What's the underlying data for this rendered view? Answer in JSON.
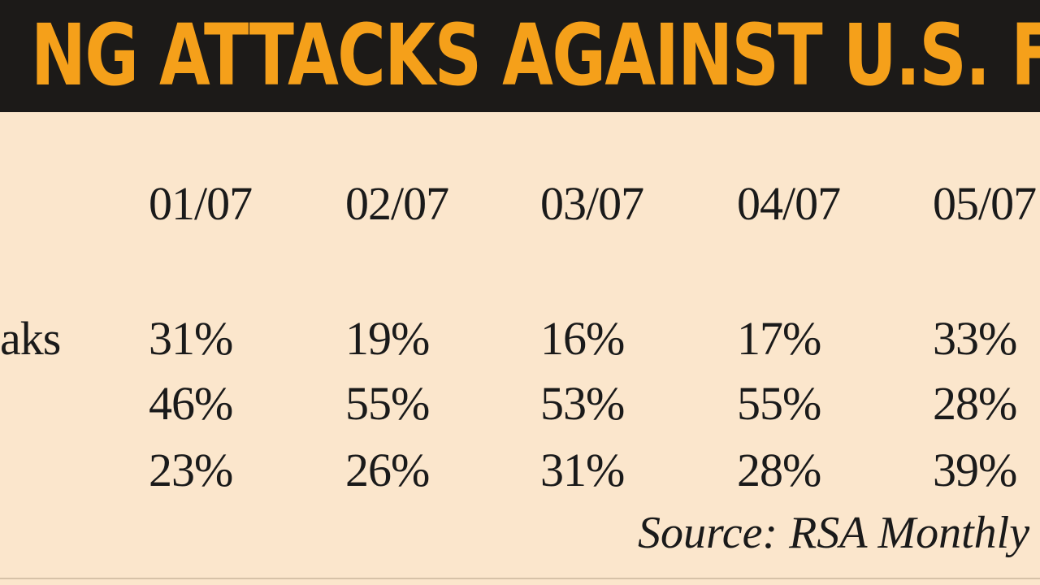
{
  "header": {
    "title": "NG ATTACKS AGAINST U.S. FINA"
  },
  "table": {
    "columns": [
      "01/07",
      "02/07",
      "03/07",
      "04/07",
      "05/07"
    ],
    "rows": [
      {
        "label": "aks",
        "cells": [
          "31%",
          "19%",
          "16%",
          "17%",
          "33%"
        ]
      },
      {
        "cells": [
          "46%",
          "55%",
          "53%",
          "55%",
          "28%"
        ]
      },
      {
        "cells": [
          "23%",
          "26%",
          "31%",
          "28%",
          "39%"
        ]
      }
    ]
  },
  "footer": {
    "source": "Source: RSA Monthly"
  }
}
